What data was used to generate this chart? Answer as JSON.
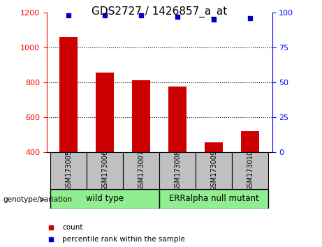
{
  "title": "GDS2727 / 1426857_a_at",
  "samples": [
    "GSM173005",
    "GSM173006",
    "GSM173007",
    "GSM173008",
    "GSM173009",
    "GSM173010"
  ],
  "counts": [
    1060,
    855,
    810,
    775,
    455,
    520
  ],
  "percentile_ranks": [
    98,
    98,
    98,
    97,
    95,
    96
  ],
  "bar_color": "#CC0000",
  "percentile_color": "#0000CC",
  "ylim_left": [
    400,
    1200
  ],
  "ylim_right": [
    0,
    100
  ],
  "yticks_left": [
    400,
    600,
    800,
    1000,
    1200
  ],
  "yticks_right": [
    0,
    25,
    50,
    75,
    100
  ],
  "grid_values": [
    600,
    800,
    1000
  ],
  "bar_width": 0.5,
  "label_area_color": "#C0C0C0",
  "green_color": "#90EE90",
  "genotype_label": "genotype/variation",
  "legend_count_label": "count",
  "legend_percentile_label": "percentile rank within the sample",
  "wt_label": "wild type",
  "err_label": "ERRalpha null mutant"
}
